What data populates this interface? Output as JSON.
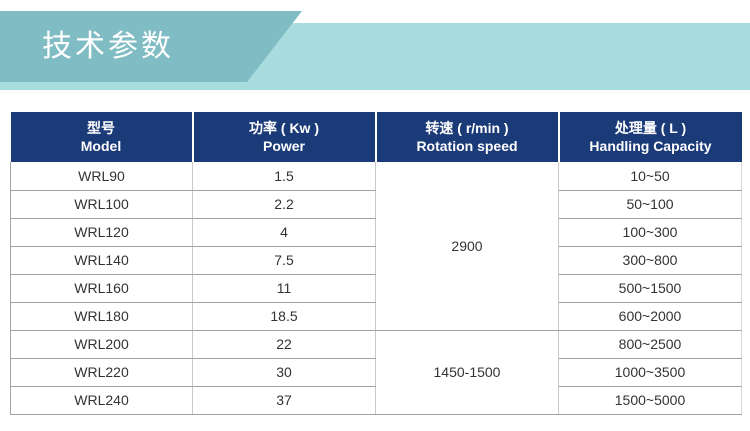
{
  "banner": {
    "title": "技术参数"
  },
  "colors": {
    "header_bg": "#1b3a78",
    "banner_dark_teal": "#80bcc4",
    "banner_light_teal": "#a9dcde",
    "row_line": "#a3a3a3",
    "column_line": "#c9c9c9"
  },
  "table": {
    "header": [
      {
        "zh": "型号",
        "en": "Model"
      },
      {
        "zh": "功率 ( Kw )",
        "en": "Power"
      },
      {
        "zh": "转速 ( r/min )",
        "en": "Rotation speed"
      },
      {
        "zh": "处理量 ( L )",
        "en": "Handling Capacity"
      }
    ],
    "rotation_groups": [
      {
        "value": "2900",
        "row_span": 6
      },
      {
        "value": "1450-1500",
        "row_span": 3
      }
    ],
    "rows": [
      {
        "model": "WRL90",
        "power": "1.5",
        "capacity": "10~50"
      },
      {
        "model": "WRL100",
        "power": "2.2",
        "capacity": "50~100"
      },
      {
        "model": "WRL120",
        "power": "4",
        "capacity": "100~300"
      },
      {
        "model": "WRL140",
        "power": "7.5",
        "capacity": "300~800"
      },
      {
        "model": "WRL160",
        "power": "11",
        "capacity": "500~1500"
      },
      {
        "model": "WRL180",
        "power": "18.5",
        "capacity": "600~2000"
      },
      {
        "model": "WRL200",
        "power": "22",
        "capacity": "800~2500"
      },
      {
        "model": "WRL220",
        "power": "30",
        "capacity": "1000~3500"
      },
      {
        "model": "WRL240",
        "power": "37",
        "capacity": "1500~5000"
      }
    ]
  }
}
